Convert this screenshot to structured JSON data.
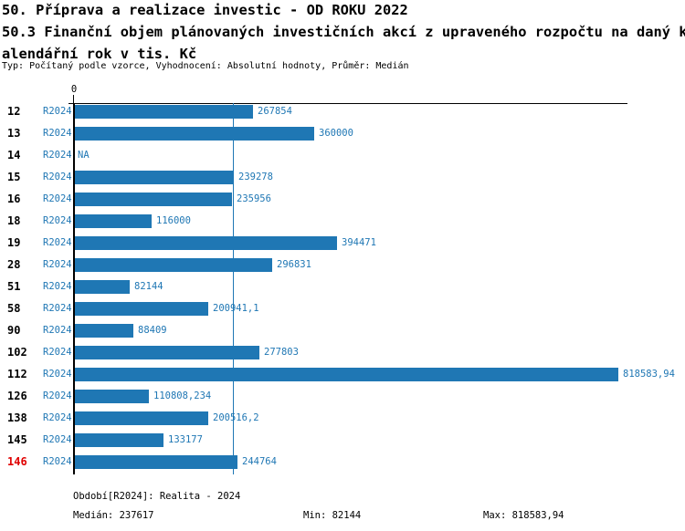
{
  "header": {
    "title_line1": "50. Příprava a realizace investic - OD ROKU 2022",
    "title_line2": "50.3 Finanční objem plánovaných investičních akcí z upraveného rozpočtu na daný k",
    "title_line3": "alendářní rok v tis. Kč",
    "subtitle": "Typ: Počítaný podle vzorce, Vyhodnocení: Absolutní hodnoty, Průměr: Medián"
  },
  "chart_data": {
    "type": "bar",
    "orientation": "horizontal",
    "title": "50.3 Finanční objem plánovaných investičních akcí z upraveného rozpočtu na daný kalendářní rok v tis. Kč",
    "axis_zero_label": "0",
    "xlim": [
      0,
      832000
    ],
    "grid": false,
    "legend": false,
    "series_label": "R2024",
    "categories": [
      "12",
      "13",
      "14",
      "15",
      "16",
      "18",
      "19",
      "28",
      "51",
      "58",
      "90",
      "102",
      "112",
      "126",
      "138",
      "145",
      "146"
    ],
    "values": [
      267854,
      360000,
      null,
      239278,
      235956,
      116000,
      394471,
      296831,
      82144,
      200941.1,
      88409,
      277803,
      818583.94,
      110808.234,
      200516.2,
      133177,
      244764
    ],
    "value_labels": [
      "267854",
      "360000",
      "NA",
      "239278",
      "235956",
      "116000",
      "394471",
      "296831",
      "82144",
      "200941,1",
      "88409",
      "277803",
      "818583,94",
      "110808,234",
      "200516,2",
      "133177",
      "244764"
    ],
    "na_label": "NA",
    "median_value": 237617,
    "min_value": 82144,
    "max_value": 818583.94,
    "highlighted_category": "146",
    "colors": {
      "bar": "#1f77b4",
      "blue_text": "#1f77b4",
      "median_line": "#1f77b4",
      "row_label": "#000000",
      "highlighted_row_label": "#e00000",
      "axis": "#000000"
    }
  },
  "footer": {
    "period": "Období[R2024]: Realita - 2024",
    "median": "Medián: 237617",
    "min": "Min: 82144",
    "max": "Max: 818583,94"
  }
}
